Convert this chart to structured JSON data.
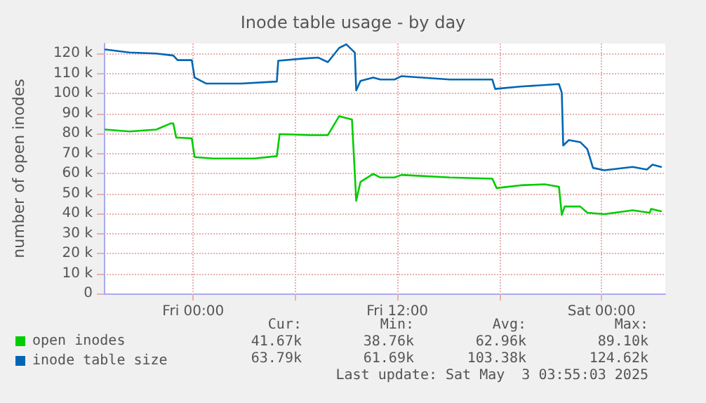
{
  "chart_data": {
    "type": "line",
    "title": "Inode table usage - by day",
    "ylabel": "number of open inodes",
    "xlim": [
      "2025-05-01T18:45",
      "2025-05-03T03:45"
    ],
    "xticks": [
      {
        "value": "2025-05-02T00:00",
        "label": "Fri 00:00"
      },
      {
        "value": "2025-05-02T06:00",
        "label": null
      },
      {
        "value": "2025-05-02T12:00",
        "label": "Fri 12:00"
      },
      {
        "value": "2025-05-02T18:00",
        "label": null
      },
      {
        "value": "2025-05-03T00:00",
        "label": "Sat 00:00"
      }
    ],
    "ylim": [
      0,
      125
    ],
    "yticks": [
      {
        "value": 0,
        "label": "0"
      },
      {
        "value": 10,
        "label": "10 k"
      },
      {
        "value": 20,
        "label": "20 k"
      },
      {
        "value": 30,
        "label": "30 k"
      },
      {
        "value": 40,
        "label": "40 k"
      },
      {
        "value": 50,
        "label": "50 k"
      },
      {
        "value": 60,
        "label": "60 k"
      },
      {
        "value": 70,
        "label": "70 k"
      },
      {
        "value": 80,
        "label": "80 k"
      },
      {
        "value": 90,
        "label": "90 k"
      },
      {
        "value": 100,
        "label": "100 k"
      },
      {
        "value": 110,
        "label": "110 k"
      },
      {
        "value": 120,
        "label": "120 k"
      }
    ],
    "grid": true,
    "legend": "bottom left",
    "marker": "none",
    "line_style": "solid",
    "series": [
      {
        "name": "open inodes",
        "color": "#00cc00",
        "x": [
          "2025-05-01T18:50",
          "2025-05-01T20:15",
          "2025-05-01T21:50",
          "2025-05-01T22:40",
          "2025-05-01T22:50",
          "2025-05-01T23:00",
          "2025-05-01T23:55",
          "2025-05-02T00:05",
          "2025-05-02T01:10",
          "2025-05-02T03:35",
          "2025-05-02T04:55",
          "2025-05-02T05:05",
          "2025-05-02T06:55",
          "2025-05-02T07:55",
          "2025-05-02T08:35",
          "2025-05-02T09:20",
          "2025-05-02T09:35",
          "2025-05-02T09:50",
          "2025-05-02T10:35",
          "2025-05-02T11:00",
          "2025-05-02T11:50",
          "2025-05-02T12:15",
          "2025-05-02T15:05",
          "2025-05-02T17:35",
          "2025-05-02T17:50",
          "2025-05-02T19:15",
          "2025-05-02T20:40",
          "2025-05-02T21:30",
          "2025-05-02T21:40",
          "2025-05-02T21:50",
          "2025-05-02T22:45",
          "2025-05-02T23:10",
          "2025-05-03T00:10",
          "2025-05-03T01:50",
          "2025-05-03T02:50",
          "2025-05-03T02:55",
          "2025-05-03T03:30"
        ],
        "values": [
          82,
          81,
          82,
          85,
          85,
          78,
          77.6,
          68.2,
          67.5,
          67.5,
          68.7,
          79.7,
          79.2,
          79.2,
          88.7,
          87,
          46.4,
          55.8,
          59.8,
          58,
          58,
          59.3,
          58,
          57.4,
          52.7,
          54.1,
          54.6,
          53.4,
          39.3,
          43.5,
          43.5,
          40.4,
          39.7,
          41.6,
          40.4,
          42.3,
          41.1
        ]
      },
      {
        "name": "inode table size",
        "color": "#0066b3",
        "x": [
          "2025-05-01T18:50",
          "2025-05-01T20:15",
          "2025-05-01T21:50",
          "2025-05-01T22:50",
          "2025-05-01T23:05",
          "2025-05-01T23:55",
          "2025-05-02T00:05",
          "2025-05-02T00:45",
          "2025-05-02T02:50",
          "2025-05-02T04:55",
          "2025-05-02T05:00",
          "2025-05-02T06:30",
          "2025-05-02T07:20",
          "2025-05-02T07:55",
          "2025-05-02T08:35",
          "2025-05-02T09:00",
          "2025-05-02T09:30",
          "2025-05-02T09:35",
          "2025-05-02T09:50",
          "2025-05-02T10:35",
          "2025-05-02T11:00",
          "2025-05-02T11:50",
          "2025-05-02T12:15",
          "2025-05-02T15:05",
          "2025-05-02T17:35",
          "2025-05-02T17:45",
          "2025-05-02T19:15",
          "2025-05-02T21:30",
          "2025-05-02T21:40",
          "2025-05-02T21:45",
          "2025-05-02T22:05",
          "2025-05-02T22:45",
          "2025-05-02T23:10",
          "2025-05-02T23:30",
          "2025-05-03T00:10",
          "2025-05-03T01:50",
          "2025-05-03T02:40",
          "2025-05-03T03:00",
          "2025-05-03T03:30"
        ],
        "values": [
          122,
          120.5,
          120,
          119,
          116.7,
          116.7,
          108,
          105,
          105,
          106,
          116.4,
          117.5,
          118,
          115.7,
          122.8,
          124.6,
          120.5,
          101.6,
          106.3,
          108,
          107,
          107,
          108.7,
          107,
          107,
          102.3,
          103.5,
          104.7,
          100.4,
          74,
          76.7,
          75.7,
          72.2,
          62.8,
          61.6,
          63.3,
          62,
          64.4,
          63.3
        ]
      }
    ],
    "annotations": [
      "Cur:",
      "Min:",
      "Avg:",
      "Max:",
      "41.67k",
      "38.76k",
      "62.96k",
      "89.10k",
      "63.79k",
      "61.69k",
      "103.38k",
      "124.62k",
      "Last update: Sat May  3 03:55:03 2025"
    ]
  }
}
